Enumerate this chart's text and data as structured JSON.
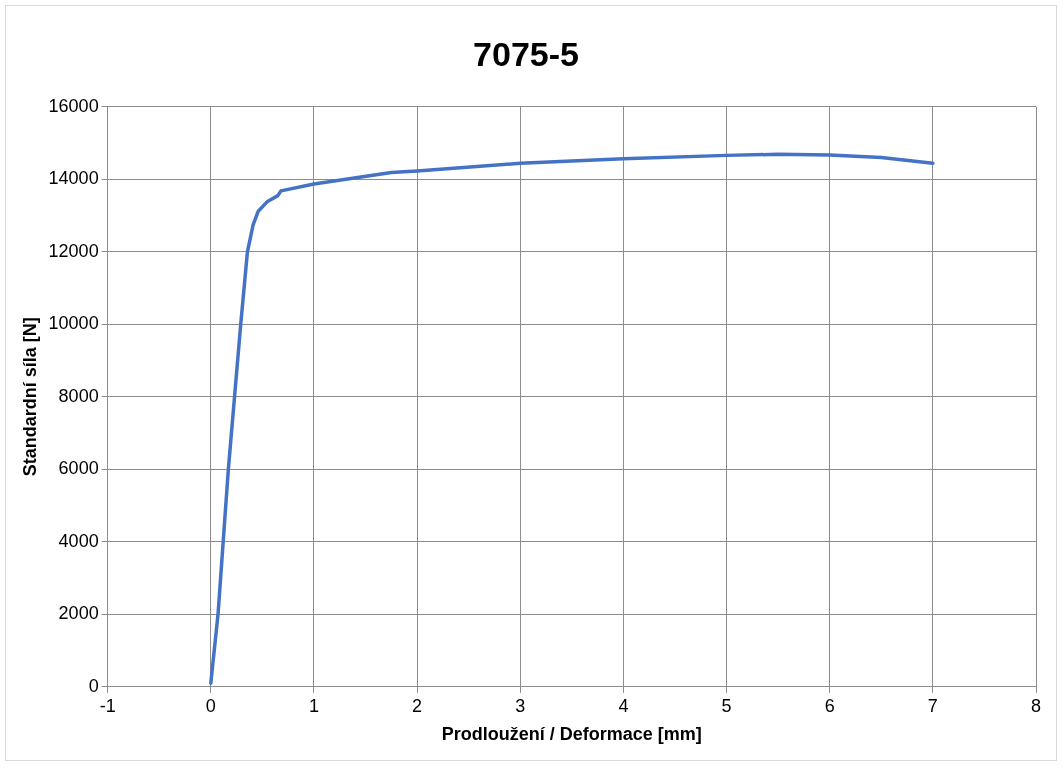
{
  "chart_data": {
    "type": "line",
    "title": "7075-5",
    "xlabel": "Prodloužení / Deformace [mm]",
    "ylabel": "Standardní síla [N]",
    "xlim": [
      -1,
      8
    ],
    "xticks": [
      -1,
      0,
      1,
      2,
      3,
      4,
      5,
      6,
      7,
      8
    ],
    "ylim": [
      0,
      16000
    ],
    "yticks": [
      0,
      2000,
      4000,
      6000,
      8000,
      10000,
      12000,
      14000,
      16000
    ],
    "grid": true,
    "legend": false,
    "marker": "none",
    "line_style": "solid",
    "series": [
      {
        "color": "#4472c4",
        "x": [
          0,
          0.07,
          0.17,
          0.29,
          0.355,
          0.41,
          0.46,
          0.55,
          0.65,
          0.68,
          1,
          1.75,
          2,
          3,
          4,
          5,
          5.5,
          6,
          6.5,
          7
        ],
        "values": [
          100,
          2000,
          6000,
          10000,
          12000,
          12740,
          13120,
          13390,
          13550,
          13680,
          13870,
          14190,
          14230,
          14440,
          14570,
          14660,
          14690,
          14670,
          14600,
          14440
        ]
      }
    ]
  }
}
